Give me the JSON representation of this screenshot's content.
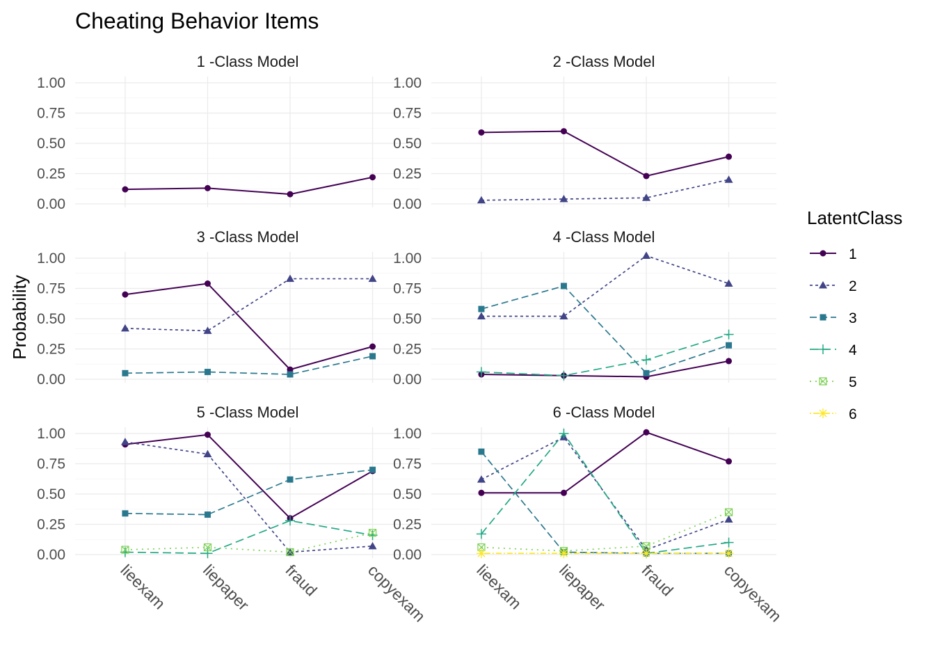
{
  "chart_data": {
    "type": "line",
    "title": "Cheating Behavior Items",
    "ylabel": "Probability",
    "xlabel": "",
    "categories": [
      "lieexam",
      "liepaper",
      "fraud",
      "copyexam"
    ],
    "y_ticks": [
      "0.00",
      "0.25",
      "0.50",
      "0.75",
      "1.00"
    ],
    "ylim": [
      0,
      1
    ],
    "grid": true,
    "legend": {
      "title": "LatentClass",
      "placement": "right",
      "entries": [
        "1",
        "2",
        "3",
        "4",
        "5",
        "6"
      ]
    },
    "class_colors": [
      "#440154",
      "#414487",
      "#2a788e",
      "#22a884",
      "#7ad151",
      "#fde725"
    ],
    "panels": [
      {
        "title": "1 -Class Model",
        "series": [
          {
            "class": "1",
            "values": [
              0.12,
              0.13,
              0.08,
              0.22
            ]
          }
        ]
      },
      {
        "title": "2 -Class Model",
        "series": [
          {
            "class": "1",
            "values": [
              0.59,
              0.6,
              0.23,
              0.39
            ]
          },
          {
            "class": "2",
            "values": [
              0.03,
              0.04,
              0.05,
              0.2
            ]
          }
        ]
      },
      {
        "title": "3 -Class Model",
        "series": [
          {
            "class": "1",
            "values": [
              0.7,
              0.79,
              0.08,
              0.27
            ]
          },
          {
            "class": "2",
            "values": [
              0.42,
              0.4,
              0.83,
              0.83
            ]
          },
          {
            "class": "3",
            "values": [
              0.05,
              0.06,
              0.04,
              0.19
            ]
          }
        ]
      },
      {
        "title": "4 -Class Model",
        "series": [
          {
            "class": "1",
            "values": [
              0.04,
              0.03,
              0.02,
              0.15
            ]
          },
          {
            "class": "2",
            "values": [
              0.52,
              0.52,
              1.02,
              0.79
            ]
          },
          {
            "class": "3",
            "values": [
              0.58,
              0.77,
              0.05,
              0.28
            ]
          },
          {
            "class": "4",
            "values": [
              0.06,
              0.03,
              0.16,
              0.37
            ]
          }
        ]
      },
      {
        "title": "5 -Class Model",
        "series": [
          {
            "class": "1",
            "values": [
              0.91,
              0.99,
              0.3,
              0.69
            ]
          },
          {
            "class": "2",
            "values": [
              0.93,
              0.83,
              0.02,
              0.07
            ]
          },
          {
            "class": "3",
            "values": [
              0.34,
              0.33,
              0.62,
              0.7
            ]
          },
          {
            "class": "4",
            "values": [
              0.02,
              0.01,
              0.28,
              0.16
            ]
          },
          {
            "class": "5",
            "values": [
              0.04,
              0.06,
              0.02,
              0.18
            ]
          }
        ]
      },
      {
        "title": "6 -Class Model",
        "series": [
          {
            "class": "1",
            "values": [
              0.51,
              0.51,
              1.01,
              0.77
            ]
          },
          {
            "class": "2",
            "values": [
              0.62,
              0.97,
              0.04,
              0.29
            ]
          },
          {
            "class": "3",
            "values": [
              0.85,
              0.02,
              0.01,
              0.01
            ]
          },
          {
            "class": "4",
            "values": [
              0.17,
              1.0,
              0.01,
              0.1
            ]
          },
          {
            "class": "5",
            "values": [
              0.06,
              0.03,
              0.07,
              0.35
            ]
          },
          {
            "class": "6",
            "values": [
              0.01,
              0.01,
              0.01,
              0.01
            ]
          }
        ]
      }
    ]
  }
}
